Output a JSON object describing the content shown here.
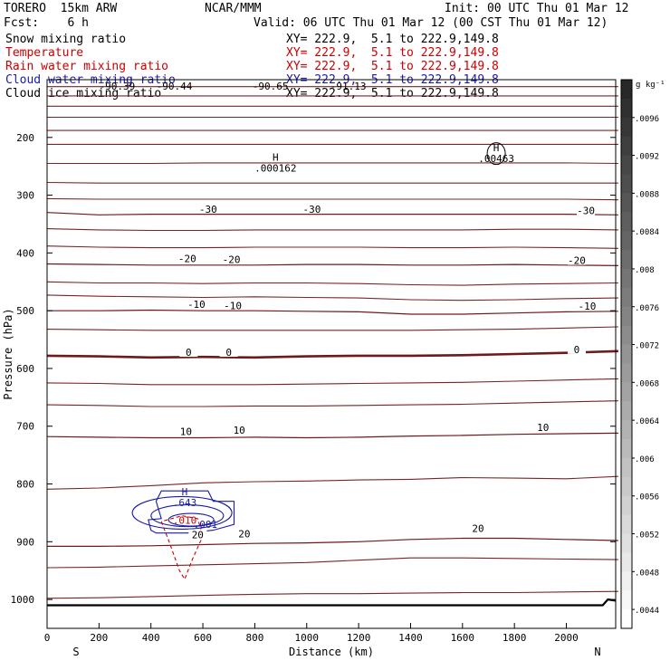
{
  "header": {
    "model": "TORERO  15km ARW",
    "org": "NCAR/MMM",
    "init": "Init: 00 UTC Thu 01 Mar 12",
    "fcst": "Fcst:    6 h",
    "valid": "Valid: 06 UTC Thu 01 Mar 12 (00 CST Thu 01 Mar 12)"
  },
  "legend": {
    "fields": [
      {
        "label": "Snow mixing ratio",
        "color": "#000000"
      },
      {
        "label": "Temperature",
        "color": "#cc0000"
      },
      {
        "label": "Rain water mixing ratio",
        "color": "#cc0000"
      },
      {
        "label": "Cloud water mixing ratio",
        "color": "#1a1aaa"
      },
      {
        "label": "Cloud ice mixing ratio",
        "color": "#000000"
      }
    ],
    "xy_text": "XY= 222.9,  5.1 to 222.9,149.8"
  },
  "chart_data": {
    "type": "contour",
    "xlabel": "Distance (km)",
    "ylabel": "Pressure (hPa)",
    "xlim": [
      0,
      2190
    ],
    "ylim": [
      1050,
      100
    ],
    "x_ticks": [
      0,
      200,
      400,
      600,
      800,
      1000,
      1200,
      1400,
      1600,
      1800,
      2000
    ],
    "y_ticks": [
      200,
      300,
      400,
      500,
      600,
      700,
      800,
      900,
      1000
    ],
    "left_end": "S",
    "right_end": "N",
    "top_labels": [
      "-90.39",
      "-90.44",
      "-90.65",
      "-91.13"
    ],
    "temperature_contours": [
      {
        "label": "-30",
        "y": [
          330,
          334,
          333,
          333,
          333,
          333,
          333,
          333,
          333,
          333,
          333,
          334
        ]
      },
      {
        "label": "-20",
        "y": [
          419,
          420,
          421,
          421,
          421,
          420,
          420,
          421,
          421,
          420,
          421,
          422
        ]
      },
      {
        "label": "-10",
        "y": [
          500,
          500,
          499,
          500,
          500,
          501,
          502,
          506,
          506,
          504,
          502,
          501
        ]
      },
      {
        "label": "0",
        "y": [
          578,
          579,
          581,
          580,
          581,
          579,
          578,
          578,
          577,
          575,
          573,
          570
        ]
      },
      {
        "label": "10",
        "y": [
          718,
          719,
          720,
          720,
          719,
          720,
          719,
          717,
          716,
          714,
          713,
          712
        ]
      },
      {
        "label": "20",
        "y": [
          908,
          908,
          907,
          905,
          903,
          902,
          900,
          896,
          894,
          894,
          896,
          898
        ]
      }
    ],
    "contour_labels": [
      {
        "text": "-30",
        "x": 620,
        "y": 327
      },
      {
        "text": "-30",
        "x": 1020,
        "y": 327
      },
      {
        "text": "-30",
        "x": 2075,
        "y": 330
      },
      {
        "text": "-20",
        "x": 540,
        "y": 413
      },
      {
        "text": "-20",
        "x": 710,
        "y": 414
      },
      {
        "text": "-20",
        "x": 2040,
        "y": 416
      },
      {
        "text": "-10",
        "x": 575,
        "y": 492
      },
      {
        "text": "-10",
        "x": 715,
        "y": 494
      },
      {
        "text": "-10",
        "x": 2080,
        "y": 495
      },
      {
        "text": "0",
        "x": 545,
        "y": 575
      },
      {
        "text": "0",
        "x": 700,
        "y": 575
      },
      {
        "text": "0",
        "x": 2040,
        "y": 570
      },
      {
        "text": "10",
        "x": 535,
        "y": 712
      },
      {
        "text": "10",
        "x": 740,
        "y": 710
      },
      {
        "text": "10",
        "x": 1910,
        "y": 705
      },
      {
        "text": "20",
        "x": 580,
        "y": 891
      },
      {
        "text": "20",
        "x": 760,
        "y": 889
      },
      {
        "text": "20",
        "x": 1660,
        "y": 880
      }
    ],
    "highs": [
      {
        "text": "H",
        "value": ".000162",
        "x": 880,
        "y": 253
      },
      {
        "text": "H",
        "value": ".00463",
        "x": 1730,
        "y": 236
      },
      {
        "text": "H",
        "value": ".643",
        "x": 530,
        "y": 832
      }
    ],
    "cloud_labels": [
      {
        "text": ".010",
        "x": 530,
        "y": 863
      },
      {
        "text": ".001",
        "x": 610,
        "y": 870
      }
    ],
    "colorbar": {
      "unit": "g kg⁻¹",
      "min": 0.0042,
      "max": 0.01,
      "tick_labels": [
        ".0096",
        ".0092",
        ".0088",
        ".0084",
        ".008",
        ".0076",
        ".0072",
        ".0068",
        ".0064",
        ".006",
        ".0056",
        ".0052",
        ".0048",
        ".0044"
      ]
    }
  }
}
